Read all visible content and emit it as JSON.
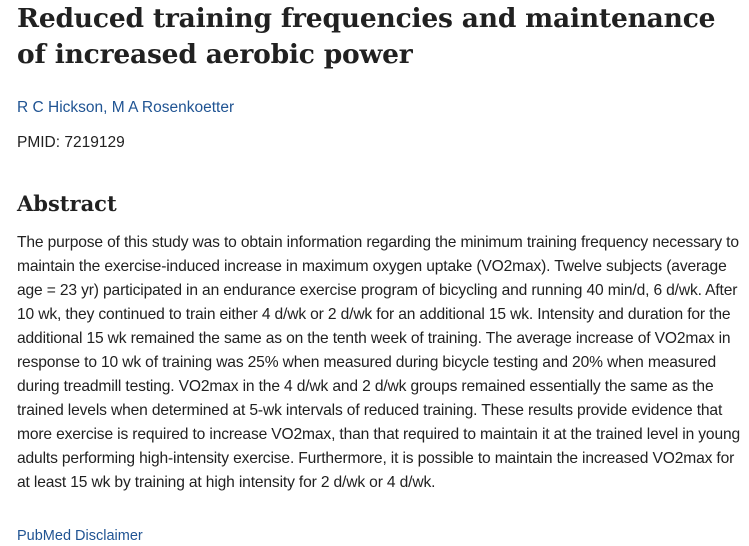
{
  "article": {
    "title": "Reduced training frequencies and maintenance of increased aerobic power",
    "authors": [
      {
        "name": "R C Hickson"
      },
      {
        "name": "M A Rosenkoetter"
      }
    ],
    "author_separator": ", ",
    "pmid": "PMID: 7219129"
  },
  "abstract": {
    "heading": "Abstract",
    "text": "The purpose of this study was to obtain information regarding the minimum training frequency necessary to maintain the exercise-induced increase in maximum oxygen uptake (VO2max). Twelve subjects (average age = 23 yr) participated in an endurance exercise program of bicycling and running 40 min/d, 6 d/wk. After 10 wk, they continued to train either 4 d/wk or 2 d/wk for an additional 15 wk. Intensity and duration for the additional 15 wk remained the same as on the tenth week of training. The average increase of VO2max in response to 10 wk of training was 25% when measured during bicycle testing and 20% when measured during treadmill testing. VO2max in the 4 d/wk and 2 d/wk groups remained essentially the same as the trained levels when determined at 5-wk intervals of reduced training. These results provide evidence that more exercise is required to increase VO2max, than that required to maintain it at the trained level in young adults performing high-intensity exercise. Furthermore, it is possible to maintain the increased VO2max for at least 15 wk by training at high intensity for 2 d/wk or 4 d/wk."
  },
  "footer": {
    "disclaimer_label": "PubMed Disclaimer"
  },
  "colors": {
    "link": "#205493",
    "text": "#212121"
  }
}
